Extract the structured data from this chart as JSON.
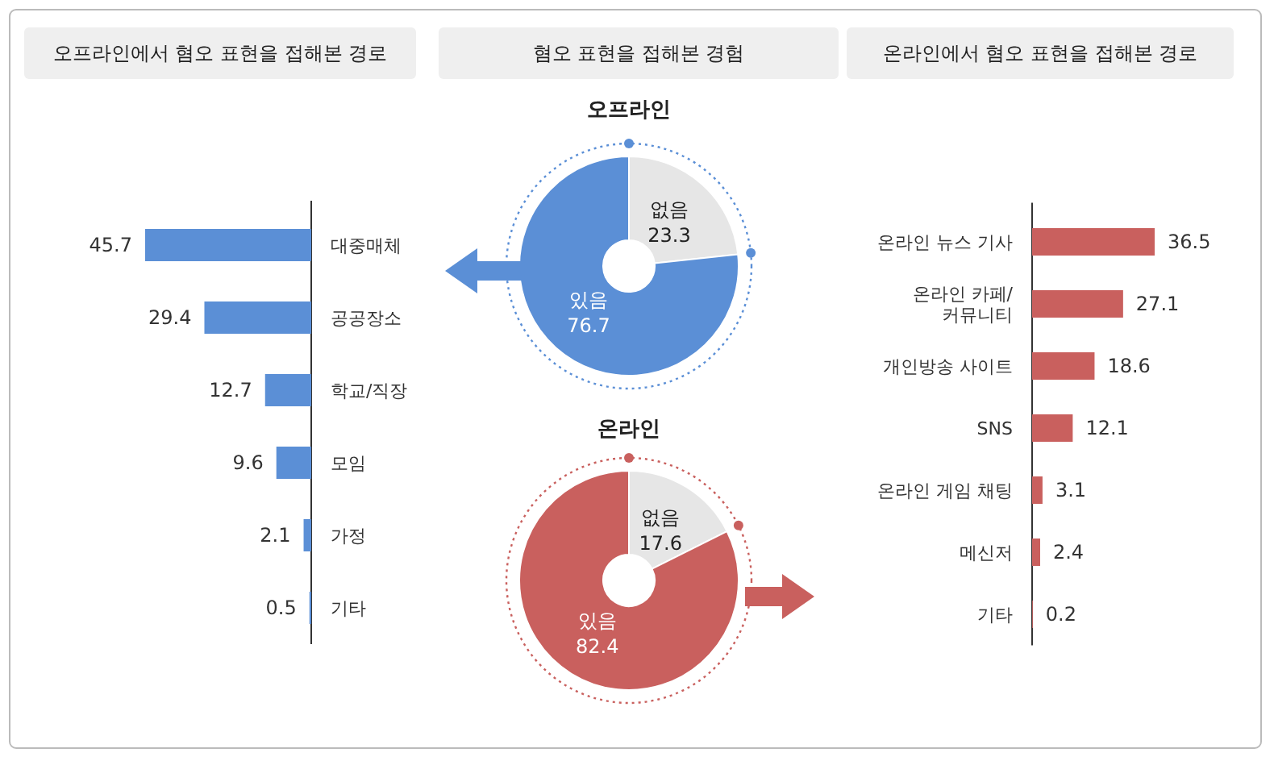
{
  "chart_data": [
    {
      "type": "bar",
      "orientation": "horizontal",
      "title": "오프라인에서 혐오 표현을 접해본 경로",
      "categories": [
        "대중매체",
        "공공장소",
        "학교/직장",
        "모임",
        "가정",
        "기타"
      ],
      "values": [
        45.7,
        29.4,
        12.7,
        9.6,
        2.1,
        0.5
      ],
      "color": "#5b8fd6",
      "data_labels": true
    },
    {
      "type": "donut",
      "title": "혐오 표현을 접해본 경험",
      "subtitle": "오프라인",
      "categories": [
        "없음",
        "있음"
      ],
      "values": [
        23.3,
        76.7
      ],
      "colors": [
        "#e6e6e6",
        "#5b8fd6"
      ],
      "data_labels": true
    },
    {
      "type": "donut",
      "subtitle": "온라인",
      "categories": [
        "없음",
        "있음"
      ],
      "values": [
        17.6,
        82.4
      ],
      "colors": [
        "#e6e6e6",
        "#c9605e"
      ],
      "data_labels": true
    },
    {
      "type": "bar",
      "orientation": "horizontal",
      "title": "온라인에서 혐오 표현을 접해본 경로",
      "categories": [
        "온라인 뉴스 기사",
        "온라인 카페/\n커뮤니티",
        "개인방송 사이트",
        "SNS",
        "온라인 게임 채팅",
        "메신저",
        "기타"
      ],
      "values": [
        36.5,
        27.1,
        18.6,
        12.1,
        3.1,
        2.4,
        0.2
      ],
      "color": "#c9605e",
      "data_labels": true
    }
  ]
}
